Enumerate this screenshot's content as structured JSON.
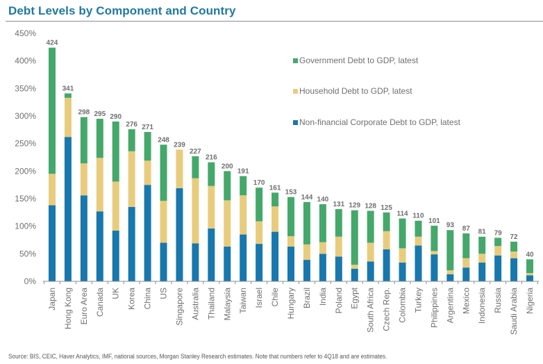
{
  "header": {
    "title": "Debt Levels by Component and Country"
  },
  "footer": {
    "source": "Source: BIS, CEIC, Haver Analytics, IMF, national sources, Morgan Stanley Research estimates. Note that  numbers refer to 4Q18 and are estimates."
  },
  "colors": {
    "government": "#45a86b",
    "household": "#e8cc7e",
    "corporate": "#1878ad",
    "axis": "#8c8c8c",
    "text": "#6f6f6f"
  },
  "chart_data": {
    "type": "bar",
    "stacked": true,
    "title": "Debt Levels by Component and Country",
    "xlabel": "",
    "ylabel": "",
    "ylim": [
      0,
      450
    ],
    "y_ticks": [
      0,
      50,
      100,
      150,
      200,
      250,
      300,
      350,
      400,
      450
    ],
    "y_tick_labels": [
      "0%",
      "50%",
      "100%",
      "150%",
      "200%",
      "250%",
      "300%",
      "350%",
      "400%",
      "450%"
    ],
    "grid": false,
    "legend_position": "top-right",
    "categories": [
      "Japan",
      "Hong Kong",
      "Euro Area",
      "Canada",
      "UK",
      "Korea",
      "China",
      "US",
      "Singapore",
      "Australia",
      "Thailand",
      "Malaysia",
      "Taiwan",
      "Israel",
      "Chile",
      "Hungary",
      "Brazil",
      "India",
      "Poland",
      "Egypt",
      "South Africa",
      "Czech Rep.",
      "Colombia",
      "Turkey",
      "Philippines",
      "Argentina",
      "Mexico",
      "Indonesia",
      "Russia",
      "Saudi Arabia",
      "Nigeria"
    ],
    "series": [
      {
        "key": "corporate",
        "name": "Non-financial Corporate Debt to GDP, latest",
        "values": [
          138,
          262,
          156,
          127,
          92,
          135,
          175,
          70,
          169,
          69,
          96,
          63,
          85,
          68,
          90,
          63,
          39,
          50,
          45,
          23,
          36,
          58,
          34,
          65,
          49,
          13,
          25,
          34,
          47,
          42,
          11
        ]
      },
      {
        "key": "household",
        "name": "Household Debt to GDP, latest",
        "values": [
          57,
          71,
          58,
          97,
          89,
          101,
          44,
          76,
          70,
          118,
          77,
          84,
          71,
          41,
          46,
          19,
          28,
          21,
          36,
          7,
          34,
          33,
          26,
          16,
          6,
          7,
          17,
          16,
          17,
          12,
          4
        ]
      },
      {
        "key": "government",
        "name": "Government Debt to GDP, latest",
        "values": [
          229,
          8,
          84,
          71,
          109,
          40,
          52,
          102,
          0,
          40,
          43,
          53,
          35,
          61,
          25,
          71,
          77,
          69,
          50,
          99,
          58,
          34,
          54,
          29,
          46,
          73,
          45,
          31,
          15,
          18,
          25
        ]
      }
    ],
    "totals": [
      424,
      341,
      298,
      295,
      290,
      276,
      271,
      248,
      239,
      227,
      216,
      200,
      191,
      170,
      161,
      153,
      144,
      140,
      131,
      129,
      128,
      125,
      114,
      110,
      101,
      93,
      87,
      81,
      79,
      72,
      40
    ],
    "legend": [
      {
        "key": "government",
        "label": "Government Debt to GDP, latest"
      },
      {
        "key": "household",
        "label": "Household Debt to GDP, latest"
      },
      {
        "key": "corporate",
        "label": "Non-financial Corporate Debt to GDP, latest"
      }
    ]
  }
}
